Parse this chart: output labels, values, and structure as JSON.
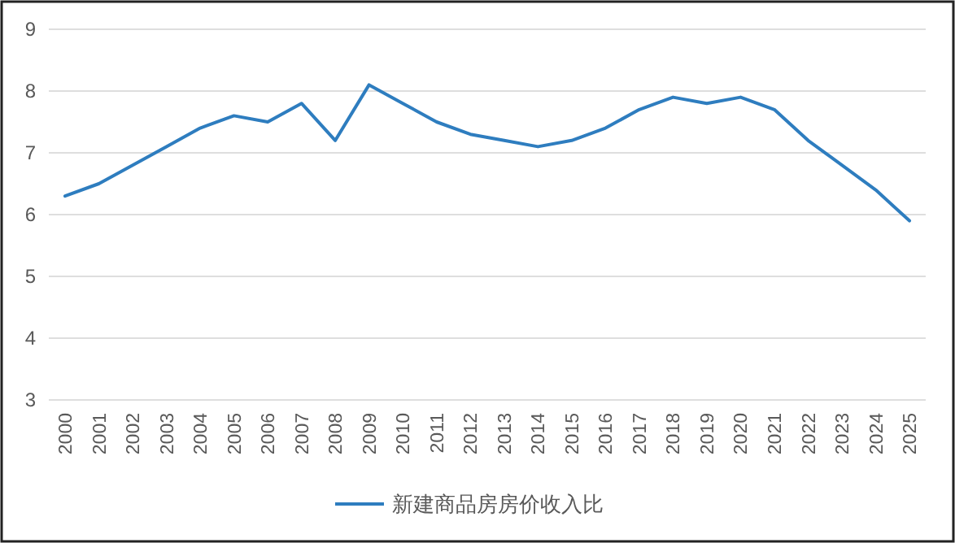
{
  "chart_data": {
    "type": "line",
    "categories": [
      "2000",
      "2001",
      "2002",
      "2003",
      "2004",
      "2005",
      "2006",
      "2007",
      "2008",
      "2009",
      "2010",
      "2011",
      "2012",
      "2013",
      "2014",
      "2015",
      "2016",
      "2017",
      "2018",
      "2019",
      "2020",
      "2021",
      "2022",
      "2023",
      "2024",
      "2025"
    ],
    "series": [
      {
        "name": "新建商品房房价收入比",
        "color": "#2e7dbf",
        "values": [
          6.3,
          6.5,
          6.8,
          7.1,
          7.4,
          7.6,
          7.5,
          7.8,
          7.2,
          8.1,
          7.8,
          7.5,
          7.3,
          7.2,
          7.1,
          7.2,
          7.4,
          7.7,
          7.9,
          7.8,
          7.9,
          7.7,
          7.2,
          6.8,
          6.4,
          5.9
        ]
      }
    ],
    "ylim": [
      3,
      9
    ],
    "yticks": [
      3,
      4,
      5,
      6,
      7,
      8,
      9
    ],
    "grid": "y",
    "legend": "bottom",
    "marker": "none",
    "line_style": "solid"
  }
}
